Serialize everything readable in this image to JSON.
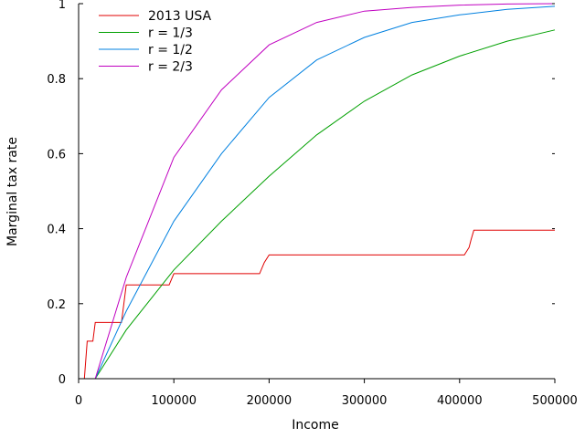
{
  "chart_data": {
    "type": "line",
    "title": "",
    "xlabel": "Income",
    "ylabel": "Marginal tax rate",
    "xlim": [
      0,
      500000
    ],
    "ylim": [
      0,
      1
    ],
    "x_ticks": [
      0,
      100000,
      200000,
      300000,
      400000,
      500000
    ],
    "x_tick_labels": [
      "0",
      "100000",
      "200000",
      "300000",
      "400000",
      "500000"
    ],
    "y_ticks": [
      0,
      0.2,
      0.4,
      0.6,
      0.8,
      1
    ],
    "y_tick_labels": [
      "0",
      "0.2",
      "0.4",
      "0.6",
      "0.8",
      "1"
    ],
    "grid": false,
    "legend_position": "top-left",
    "series": [
      {
        "name": "2013 USA",
        "color": "#e00000",
        "x": [
          0,
          6000,
          9000,
          9000,
          15000,
          17500,
          20000,
          45000,
          47500,
          50000,
          95000,
          100000,
          190000,
          195000,
          200000,
          405000,
          410000,
          412000,
          415000,
          500000
        ],
        "y": [
          0,
          0,
          0.1,
          0.1,
          0.1,
          0.15,
          0.15,
          0.15,
          0.2,
          0.25,
          0.25,
          0.28,
          0.28,
          0.31,
          0.33,
          0.33,
          0.35,
          0.37,
          0.396,
          0.396
        ]
      },
      {
        "name": "r = 1/3",
        "color": "#00a000",
        "x": [
          17500,
          50000,
          100000,
          150000,
          200000,
          250000,
          300000,
          350000,
          400000,
          450000,
          500000
        ],
        "y": [
          0,
          0.13,
          0.29,
          0.42,
          0.54,
          0.65,
          0.74,
          0.81,
          0.86,
          0.9,
          0.93
        ]
      },
      {
        "name": "r = 1/2",
        "color": "#0080e0",
        "x": [
          17500,
          50000,
          100000,
          150000,
          200000,
          250000,
          300000,
          350000,
          400000,
          450000,
          500000
        ],
        "y": [
          0,
          0.18,
          0.42,
          0.6,
          0.75,
          0.85,
          0.91,
          0.95,
          0.97,
          0.985,
          0.993
        ]
      },
      {
        "name": "r = 2/3",
        "color": "#c000c0",
        "x": [
          17500,
          50000,
          100000,
          150000,
          200000,
          250000,
          300000,
          350000,
          400000,
          450000,
          500000
        ],
        "y": [
          0,
          0.27,
          0.59,
          0.77,
          0.89,
          0.95,
          0.98,
          0.99,
          0.996,
          0.999,
          1
        ]
      }
    ]
  }
}
